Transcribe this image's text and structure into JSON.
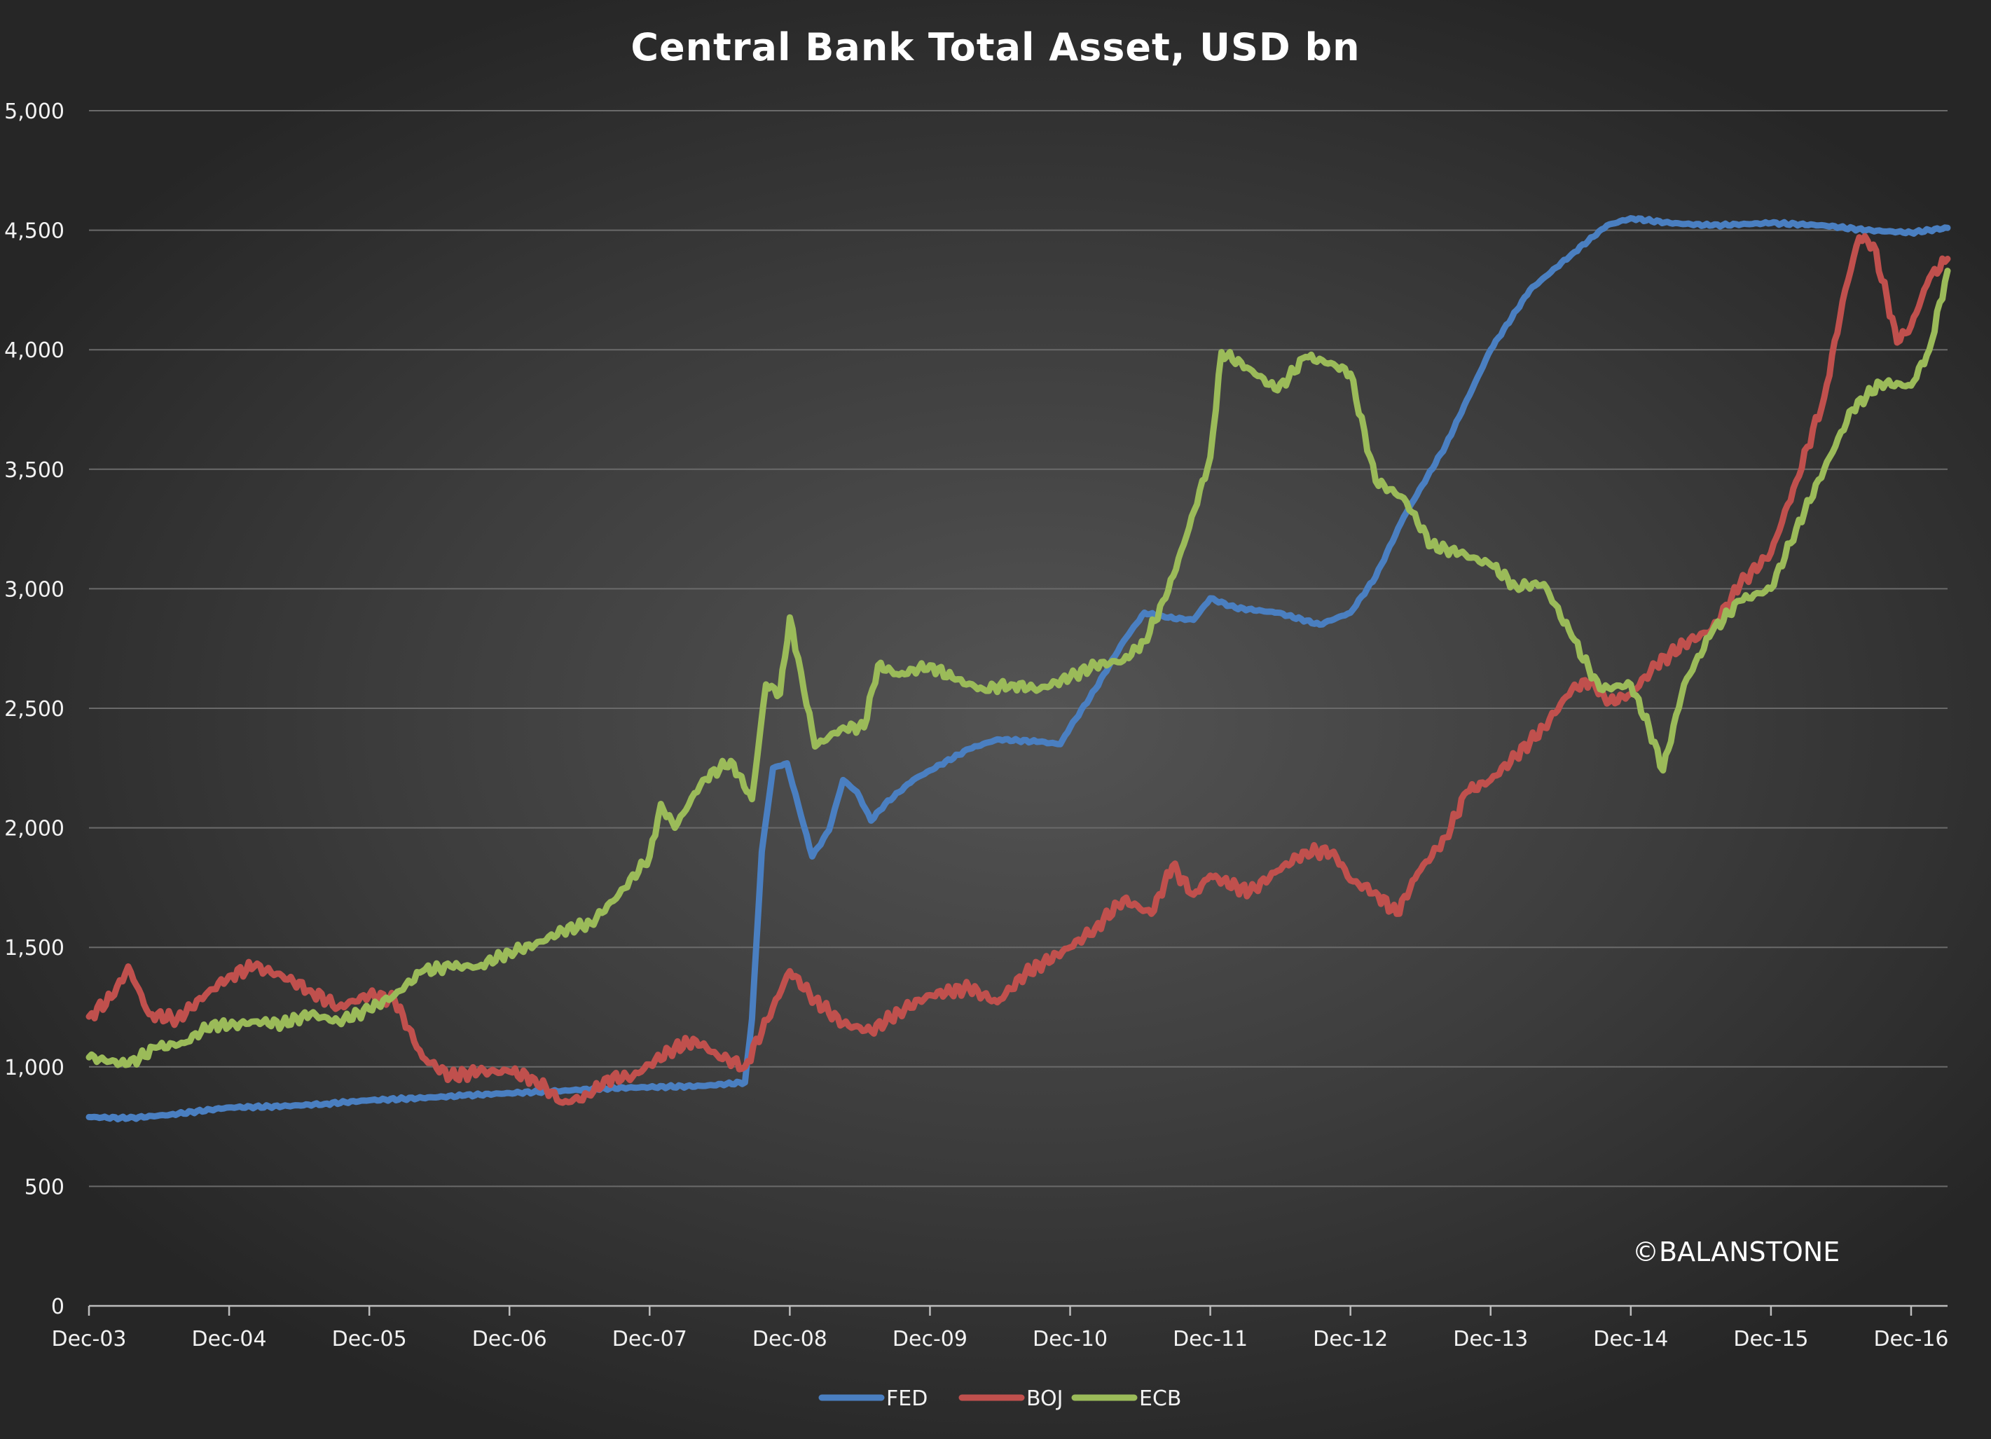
{
  "watermark": "©BALANSTONE",
  "chart_data": {
    "type": "line",
    "title": "Central Bank Total Asset, USD bn",
    "xlabel": "",
    "ylabel": "",
    "ylim": [
      0,
      5000
    ],
    "yticks": [
      0,
      500,
      1000,
      1500,
      2000,
      2500,
      3000,
      3500,
      4000,
      4500,
      5000
    ],
    "ytick_labels": [
      "0",
      "500",
      "1,000",
      "1,500",
      "2,000",
      "2,500",
      "3,000",
      "3,500",
      "4,000",
      "4,500",
      "5,000"
    ],
    "xlim": [
      2003.92,
      2017.18
    ],
    "xticks": [
      {
        "x": 2003.92,
        "label": "Dec-03"
      },
      {
        "x": 2004.92,
        "label": "Dec-04"
      },
      {
        "x": 2005.92,
        "label": "Dec-05"
      },
      {
        "x": 2006.92,
        "label": "Dec-06"
      },
      {
        "x": 2007.92,
        "label": "Dec-07"
      },
      {
        "x": 2008.92,
        "label": "Dec-08"
      },
      {
        "x": 2009.92,
        "label": "Dec-09"
      },
      {
        "x": 2010.92,
        "label": "Dec-10"
      },
      {
        "x": 2011.92,
        "label": "Dec-11"
      },
      {
        "x": 2012.92,
        "label": "Dec-12"
      },
      {
        "x": 2013.92,
        "label": "Dec-13"
      },
      {
        "x": 2014.92,
        "label": "Dec-14"
      },
      {
        "x": 2015.92,
        "label": "Dec-15"
      },
      {
        "x": 2016.92,
        "label": "Dec-16"
      }
    ],
    "grid": true,
    "legend_position": "bottom",
    "series": [
      {
        "name": "FED",
        "color": "#4a7fc1",
        "points": [
          [
            2003.92,
            790
          ],
          [
            2004.2,
            785
          ],
          [
            2004.5,
            800
          ],
          [
            2004.92,
            830
          ],
          [
            2005.3,
            835
          ],
          [
            2005.6,
            845
          ],
          [
            2005.92,
            860
          ],
          [
            2006.3,
            870
          ],
          [
            2006.6,
            880
          ],
          [
            2006.92,
            890
          ],
          [
            2007.3,
            900
          ],
          [
            2007.6,
            910
          ],
          [
            2007.92,
            915
          ],
          [
            2008.3,
            920
          ],
          [
            2008.6,
            935
          ],
          [
            2008.65,
            1200
          ],
          [
            2008.72,
            1900
          ],
          [
            2008.8,
            2250
          ],
          [
            2008.9,
            2270
          ],
          [
            2009.0,
            2050
          ],
          [
            2009.08,
            1880
          ],
          [
            2009.2,
            1990
          ],
          [
            2009.3,
            2200
          ],
          [
            2009.4,
            2150
          ],
          [
            2009.5,
            2030
          ],
          [
            2009.6,
            2100
          ],
          [
            2009.8,
            2200
          ],
          [
            2009.92,
            2240
          ],
          [
            2010.2,
            2330
          ],
          [
            2010.4,
            2370
          ],
          [
            2010.7,
            2360
          ],
          [
            2010.85,
            2350
          ],
          [
            2010.92,
            2420
          ],
          [
            2011.1,
            2580
          ],
          [
            2011.3,
            2780
          ],
          [
            2011.45,
            2900
          ],
          [
            2011.6,
            2880
          ],
          [
            2011.8,
            2870
          ],
          [
            2011.92,
            2960
          ],
          [
            2012.1,
            2920
          ],
          [
            2012.4,
            2900
          ],
          [
            2012.7,
            2850
          ],
          [
            2012.92,
            2900
          ],
          [
            2013.1,
            3050
          ],
          [
            2013.3,
            3300
          ],
          [
            2013.6,
            3600
          ],
          [
            2013.92,
            4000
          ],
          [
            2014.2,
            4250
          ],
          [
            2014.5,
            4400
          ],
          [
            2014.75,
            4520
          ],
          [
            2014.92,
            4550
          ],
          [
            2015.2,
            4530
          ],
          [
            2015.5,
            4520
          ],
          [
            2015.92,
            4530
          ],
          [
            2016.3,
            4520
          ],
          [
            2016.6,
            4500
          ],
          [
            2016.92,
            4490
          ],
          [
            2017.18,
            4510
          ]
        ]
      },
      {
        "name": "BOJ",
        "color": "#c0504d",
        "points": [
          [
            2003.92,
            1210
          ],
          [
            2004.1,
            1300
          ],
          [
            2004.2,
            1420
          ],
          [
            2004.35,
            1220
          ],
          [
            2004.55,
            1200
          ],
          [
            2004.75,
            1300
          ],
          [
            2004.92,
            1380
          ],
          [
            2005.1,
            1420
          ],
          [
            2005.3,
            1380
          ],
          [
            2005.5,
            1320
          ],
          [
            2005.7,
            1250
          ],
          [
            2005.92,
            1300
          ],
          [
            2006.1,
            1280
          ],
          [
            2006.3,
            1040
          ],
          [
            2006.5,
            960
          ],
          [
            2006.7,
            980
          ],
          [
            2006.92,
            980
          ],
          [
            2007.1,
            950
          ],
          [
            2007.3,
            850
          ],
          [
            2007.5,
            880
          ],
          [
            2007.6,
            950
          ],
          [
            2007.8,
            960
          ],
          [
            2007.92,
            1010
          ],
          [
            2008.1,
            1080
          ],
          [
            2008.25,
            1110
          ],
          [
            2008.4,
            1050
          ],
          [
            2008.6,
            1000
          ],
          [
            2008.8,
            1250
          ],
          [
            2008.92,
            1400
          ],
          [
            2009.1,
            1280
          ],
          [
            2009.3,
            1180
          ],
          [
            2009.5,
            1150
          ],
          [
            2009.7,
            1230
          ],
          [
            2009.92,
            1300
          ],
          [
            2010.2,
            1330
          ],
          [
            2010.4,
            1270
          ],
          [
            2010.6,
            1390
          ],
          [
            2010.92,
            1500
          ],
          [
            2011.1,
            1580
          ],
          [
            2011.3,
            1700
          ],
          [
            2011.5,
            1640
          ],
          [
            2011.65,
            1840
          ],
          [
            2011.8,
            1720
          ],
          [
            2011.92,
            1800
          ],
          [
            2012.2,
            1730
          ],
          [
            2012.4,
            1820
          ],
          [
            2012.6,
            1900
          ],
          [
            2012.8,
            1900
          ],
          [
            2012.92,
            1780
          ],
          [
            2013.1,
            1730
          ],
          [
            2013.25,
            1640
          ],
          [
            2013.4,
            1810
          ],
          [
            2013.6,
            1960
          ],
          [
            2013.75,
            2150
          ],
          [
            2013.92,
            2200
          ],
          [
            2014.1,
            2300
          ],
          [
            2014.3,
            2420
          ],
          [
            2014.5,
            2580
          ],
          [
            2014.65,
            2620
          ],
          [
            2014.75,
            2520
          ],
          [
            2014.92,
            2560
          ],
          [
            2015.1,
            2680
          ],
          [
            2015.3,
            2770
          ],
          [
            2015.5,
            2830
          ],
          [
            2015.7,
            3020
          ],
          [
            2015.92,
            3150
          ],
          [
            2016.1,
            3450
          ],
          [
            2016.3,
            3800
          ],
          [
            2016.45,
            4250
          ],
          [
            2016.55,
            4470
          ],
          [
            2016.65,
            4440
          ],
          [
            2016.75,
            4210
          ],
          [
            2016.82,
            4030
          ],
          [
            2016.92,
            4100
          ],
          [
            2017.05,
            4300
          ],
          [
            2017.18,
            4380
          ]
        ]
      },
      {
        "name": "ECB",
        "color": "#9bbb59",
        "points": [
          [
            2003.92,
            1040
          ],
          [
            2004.2,
            1010
          ],
          [
            2004.4,
            1080
          ],
          [
            2004.6,
            1100
          ],
          [
            2004.8,
            1180
          ],
          [
            2004.92,
            1170
          ],
          [
            2005.1,
            1190
          ],
          [
            2005.3,
            1180
          ],
          [
            2005.5,
            1220
          ],
          [
            2005.7,
            1190
          ],
          [
            2005.92,
            1240
          ],
          [
            2006.1,
            1300
          ],
          [
            2006.3,
            1400
          ],
          [
            2006.5,
            1420
          ],
          [
            2006.7,
            1420
          ],
          [
            2006.92,
            1480
          ],
          [
            2007.1,
            1510
          ],
          [
            2007.3,
            1570
          ],
          [
            2007.5,
            1600
          ],
          [
            2007.7,
            1720
          ],
          [
            2007.92,
            1880
          ],
          [
            2008.0,
            2100
          ],
          [
            2008.1,
            2000
          ],
          [
            2008.3,
            2200
          ],
          [
            2008.5,
            2280
          ],
          [
            2008.65,
            2120
          ],
          [
            2008.75,
            2600
          ],
          [
            2008.85,
            2560
          ],
          [
            2008.92,
            2880
          ],
          [
            2009.0,
            2650
          ],
          [
            2009.1,
            2340
          ],
          [
            2009.3,
            2420
          ],
          [
            2009.45,
            2420
          ],
          [
            2009.55,
            2680
          ],
          [
            2009.7,
            2640
          ],
          [
            2009.92,
            2680
          ],
          [
            2010.1,
            2620
          ],
          [
            2010.3,
            2580
          ],
          [
            2010.5,
            2600
          ],
          [
            2010.7,
            2580
          ],
          [
            2010.92,
            2630
          ],
          [
            2011.1,
            2680
          ],
          [
            2011.3,
            2700
          ],
          [
            2011.45,
            2780
          ],
          [
            2011.6,
            2960
          ],
          [
            2011.75,
            3220
          ],
          [
            2011.92,
            3550
          ],
          [
            2012.0,
            3990
          ],
          [
            2012.2,
            3920
          ],
          [
            2012.4,
            3830
          ],
          [
            2012.6,
            3970
          ],
          [
            2012.8,
            3940
          ],
          [
            2012.92,
            3900
          ],
          [
            2013.1,
            3450
          ],
          [
            2013.3,
            3380
          ],
          [
            2013.5,
            3180
          ],
          [
            2013.7,
            3150
          ],
          [
            2013.92,
            3100
          ],
          [
            2014.1,
            3010
          ],
          [
            2014.3,
            3020
          ],
          [
            2014.5,
            2800
          ],
          [
            2014.7,
            2580
          ],
          [
            2014.92,
            2600
          ],
          [
            2015.05,
            2420
          ],
          [
            2015.15,
            2240
          ],
          [
            2015.3,
            2600
          ],
          [
            2015.5,
            2820
          ],
          [
            2015.7,
            2950
          ],
          [
            2015.92,
            3000
          ],
          [
            2016.1,
            3250
          ],
          [
            2016.3,
            3500
          ],
          [
            2016.5,
            3750
          ],
          [
            2016.7,
            3860
          ],
          [
            2016.92,
            3850
          ],
          [
            2017.05,
            4000
          ],
          [
            2017.18,
            4330
          ]
        ]
      }
    ]
  }
}
